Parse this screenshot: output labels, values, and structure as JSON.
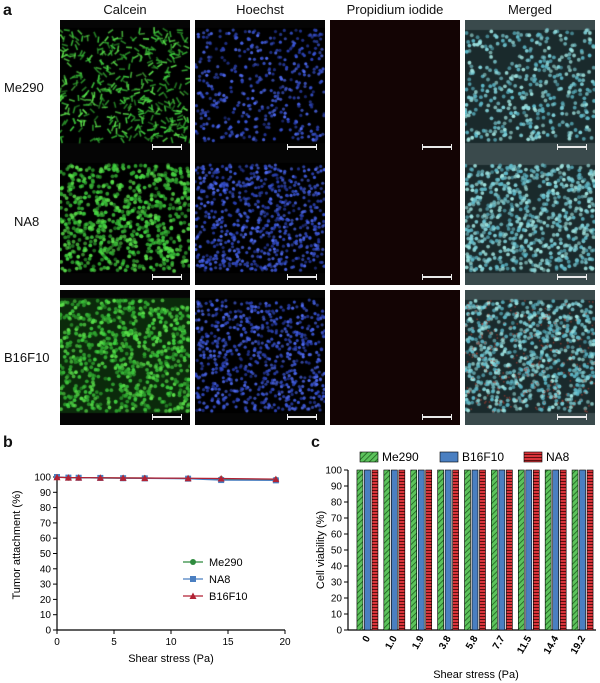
{
  "panel_a": {
    "letter": "a",
    "columns": [
      "Calcein",
      "Hoechst",
      "Propidium iodide",
      "Merged"
    ],
    "rows": [
      "Me290",
      "NA8",
      "B16F10"
    ]
  },
  "chart_data": [
    {
      "panel": "b",
      "type": "line",
      "xlabel": "Shear stress (Pa)",
      "ylabel": "Tumor attachment (%)",
      "xlim": [
        0,
        20
      ],
      "ylim": [
        0,
        100
      ],
      "xticks": [
        0,
        5,
        10,
        15,
        20
      ],
      "yticks": [
        0,
        10,
        20,
        30,
        40,
        50,
        60,
        70,
        80,
        90,
        100
      ],
      "legend_position": "right-middle",
      "x": [
        0,
        1.0,
        1.9,
        3.8,
        5.8,
        7.7,
        11.5,
        14.4,
        19.2
      ],
      "series": [
        {
          "name": "Me290",
          "color": "#2e8b3e",
          "marker": "circle",
          "values": [
            100,
            99.5,
            99.5,
            99.4,
            99.3,
            99.3,
            99.0,
            98.6,
            98.2
          ]
        },
        {
          "name": "NA8",
          "color": "#4a7fc1",
          "marker": "square",
          "values": [
            100,
            99.6,
            99.5,
            99.4,
            99.2,
            99.1,
            98.9,
            98.0,
            97.8
          ]
        },
        {
          "name": "B16F10",
          "color": "#b22234",
          "marker": "triangle",
          "values": [
            99.8,
            99.6,
            99.6,
            99.5,
            99.4,
            99.3,
            99.2,
            99.0,
            98.6
          ]
        }
      ]
    },
    {
      "panel": "c",
      "type": "bar",
      "xlabel": "Shear stress (Pa)",
      "ylabel": "Cell viability (%)",
      "ylim": [
        0,
        100
      ],
      "yticks": [
        0,
        10,
        20,
        30,
        40,
        50,
        60,
        70,
        80,
        90,
        100
      ],
      "legend_position": "top",
      "categories": [
        "0",
        "1.0",
        "1.9",
        "3.8",
        "5.8",
        "7.7",
        "11.5",
        "14.4",
        "19.2"
      ],
      "series": [
        {
          "name": "Me290",
          "color": "#5cc35c",
          "pattern": "diagonal",
          "values": [
            100,
            100,
            100,
            100,
            100,
            100,
            100,
            100,
            100
          ]
        },
        {
          "name": "B16F10",
          "color": "#4a7fc1",
          "pattern": "solid",
          "values": [
            100,
            100,
            100,
            100,
            100,
            100,
            100,
            100,
            100
          ]
        },
        {
          "name": "NA8",
          "color": "#d9343a",
          "pattern": "horizontal",
          "values": [
            100,
            100,
            100,
            100,
            100,
            100,
            100,
            100,
            100
          ]
        }
      ]
    }
  ]
}
